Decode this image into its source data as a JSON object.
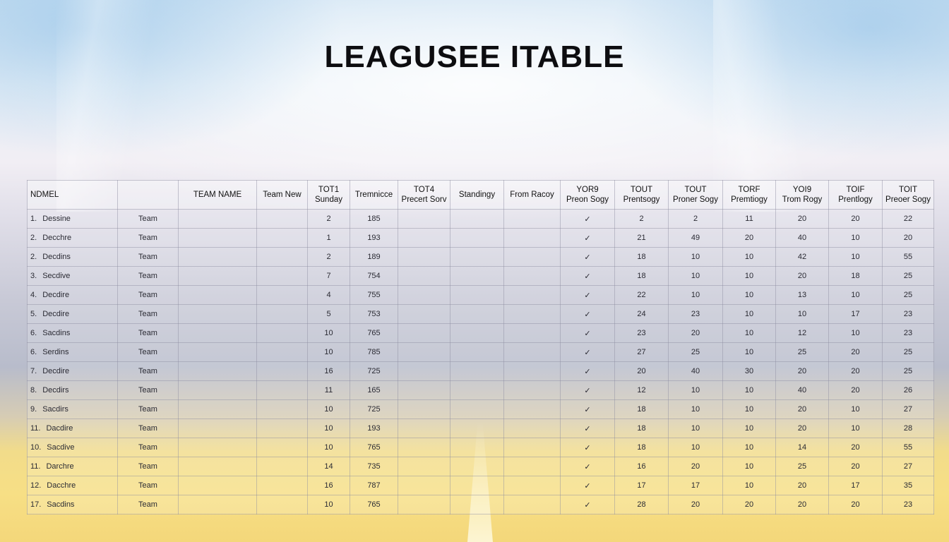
{
  "title": "LEAGUSEE ITABLE",
  "headers": [
    "NDMEL",
    "",
    "TEAM NAME",
    "Team New",
    "TOT1\nSunday",
    "Tremnicce",
    "TOT4\nPrecert Sorv",
    "Standingy",
    "From Racoy",
    "YOR9\nPreon Sogy",
    "TOUT\nPrentsogy",
    "TOUT\nProner Sogy",
    "TORF\nPremtiogy",
    "YOI9\nTrom Rogy",
    "TOIF\nPrentlogy",
    "TOIT\nPreoer Sogy"
  ],
  "rows": [
    {
      "rank": "1.",
      "name": "Dessine",
      "team": "Team",
      "c1": "2",
      "c2": "185",
      "check": "✓",
      "v": [
        "2",
        "2",
        "11",
        "20",
        "20",
        "22"
      ]
    },
    {
      "rank": "2.",
      "name": "Decchre",
      "team": "Team",
      "c1": "1",
      "c2": "193",
      "check": "✓",
      "v": [
        "21",
        "49",
        "20",
        "40",
        "10",
        "20"
      ]
    },
    {
      "rank": "2.",
      "name": "Decdins",
      "team": "Team",
      "c1": "2",
      "c2": "189",
      "check": "✓",
      "v": [
        "18",
        "10",
        "10",
        "42",
        "10",
        "55"
      ]
    },
    {
      "rank": "3.",
      "name": "Secdive",
      "team": "Team",
      "c1": "7",
      "c2": "754",
      "check": "✓",
      "v": [
        "18",
        "10",
        "10",
        "20",
        "18",
        "25"
      ]
    },
    {
      "rank": "4.",
      "name": "Decdire",
      "team": "Team",
      "c1": "4",
      "c2": "755",
      "check": "✓",
      "v": [
        "22",
        "10",
        "10",
        "13",
        "10",
        "25"
      ]
    },
    {
      "rank": "5.",
      "name": "Decdire",
      "team": "Team",
      "c1": "5",
      "c2": "753",
      "check": "✓",
      "v": [
        "24",
        "23",
        "10",
        "10",
        "17",
        "23"
      ]
    },
    {
      "rank": "6.",
      "name": "Sacdins",
      "team": "Team",
      "c1": "10",
      "c2": "765",
      "check": "✓",
      "v": [
        "23",
        "20",
        "10",
        "12",
        "10",
        "23"
      ]
    },
    {
      "rank": "6.",
      "name": "Serdins",
      "team": "Team",
      "c1": "10",
      "c2": "785",
      "check": "✓",
      "v": [
        "27",
        "25",
        "10",
        "25",
        "20",
        "25"
      ]
    },
    {
      "rank": "7.",
      "name": "Decdire",
      "team": "Team",
      "c1": "16",
      "c2": "725",
      "check": "✓",
      "v": [
        "20",
        "40",
        "30",
        "20",
        "20",
        "25"
      ]
    },
    {
      "rank": "8.",
      "name": "Decdirs",
      "team": "Team",
      "c1": "11",
      "c2": "165",
      "check": "✓",
      "v": [
        "12",
        "10",
        "10",
        "40",
        "20",
        "26"
      ]
    },
    {
      "rank": "9.",
      "name": "Sacdirs",
      "team": "Team",
      "c1": "10",
      "c2": "725",
      "check": "✓",
      "v": [
        "18",
        "10",
        "10",
        "20",
        "10",
        "27"
      ]
    },
    {
      "rank": "11.",
      "name": "Dacdire",
      "team": "Team",
      "c1": "10",
      "c2": "193",
      "check": "✓",
      "v": [
        "18",
        "10",
        "10",
        "20",
        "10",
        "28"
      ]
    },
    {
      "rank": "10.",
      "name": "Sacdive",
      "team": "Team",
      "c1": "10",
      "c2": "765",
      "check": "✓",
      "v": [
        "18",
        "10",
        "10",
        "14",
        "20",
        "55"
      ]
    },
    {
      "rank": "11.",
      "name": "Darchre",
      "team": "Team",
      "c1": "14",
      "c2": "735",
      "check": "✓",
      "v": [
        "16",
        "20",
        "10",
        "25",
        "20",
        "27"
      ]
    },
    {
      "rank": "12.",
      "name": "Dacchre",
      "team": "Team",
      "c1": "16",
      "c2": "787",
      "check": "✓",
      "v": [
        "17",
        "17",
        "10",
        "20",
        "17",
        "35"
      ]
    },
    {
      "rank": "17.",
      "name": "Sacdins",
      "team": "Team",
      "c1": "10",
      "c2": "765",
      "check": "✓",
      "v": [
        "28",
        "20",
        "20",
        "20",
        "20",
        "23"
      ]
    }
  ]
}
